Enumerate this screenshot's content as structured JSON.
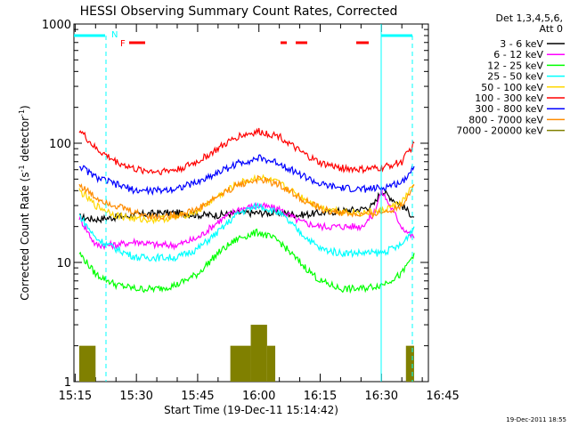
{
  "chart_data": {
    "type": "line",
    "title": "HESSI Observing Summary Count Rates, Corrected",
    "xlabel": "Start Time (19-Dec-11 15:14:42)",
    "ylabel_parts": {
      "main": "Corrected Count Rate (s",
      "sup1": "-1",
      "mid": " detector",
      "sup2": "-1",
      "end": ")"
    },
    "yscale": "log",
    "ylim": [
      1,
      1000
    ],
    "xlim_minutes": [
      14.7,
      101.5
    ],
    "xticks": [
      {
        "label": "15:15",
        "minute": 15
      },
      {
        "label": "15:30",
        "minute": 30
      },
      {
        "label": "15:45",
        "minute": 45
      },
      {
        "label": "16:00",
        "minute": 60
      },
      {
        "label": "16:15",
        "minute": 75
      },
      {
        "label": "16:30",
        "minute": 90
      },
      {
        "label": "16:45",
        "minute": 105
      }
    ],
    "yticks": [
      {
        "label": "1",
        "value": 1
      },
      {
        "label": "10",
        "value": 10
      },
      {
        "label": "100",
        "value": 100
      },
      {
        "label": "1000",
        "value": 1000
      }
    ],
    "legend_title": [
      "Det 1,3,4,5,6,",
      "Att 0"
    ],
    "legend_position": "right",
    "series": [
      {
        "name": "3 - 6 keV",
        "color": "#000000",
        "x": [
          16,
          20,
          25,
          30,
          35,
          40,
          45,
          50,
          55,
          60,
          65,
          70,
          75,
          80,
          85,
          88,
          90,
          95,
          98
        ],
        "y": [
          24,
          23,
          24,
          25,
          26,
          26,
          25,
          25,
          26,
          26,
          26,
          25,
          26,
          27,
          28,
          30,
          40,
          30,
          24
        ]
      },
      {
        "name": "6 - 12 keV",
        "color": "#ff00ff",
        "x": [
          16,
          20,
          25,
          30,
          35,
          40,
          45,
          50,
          55,
          60,
          65,
          70,
          75,
          80,
          85,
          88,
          90,
          95,
          98
        ],
        "y": [
          24,
          14,
          14,
          15,
          14,
          14,
          16,
          22,
          28,
          30,
          28,
          22,
          20,
          20,
          20,
          25,
          40,
          20,
          16
        ]
      },
      {
        "name": "12 - 25 keV",
        "color": "#00ff00",
        "x": [
          16,
          20,
          25,
          30,
          35,
          40,
          45,
          50,
          55,
          60,
          65,
          70,
          75,
          80,
          85,
          90,
          95,
          98
        ],
        "y": [
          12,
          8,
          6.5,
          6,
          6,
          6.5,
          8,
          12,
          16,
          18,
          15,
          10,
          7,
          6,
          6,
          6.5,
          8,
          12
        ]
      },
      {
        "name": "25 - 50 keV",
        "color": "#00ffff",
        "x": [
          16,
          20,
          25,
          30,
          35,
          40,
          45,
          50,
          55,
          60,
          65,
          70,
          75,
          80,
          85,
          90,
          95,
          98
        ],
        "y": [
          25,
          16,
          13,
          11,
          11,
          11,
          13,
          18,
          26,
          30,
          26,
          18,
          13,
          12,
          12,
          12,
          14,
          20
        ]
      },
      {
        "name": "50 - 100 keV",
        "color": "#ffd700",
        "x": [
          16,
          20,
          25,
          30,
          35,
          40,
          45,
          50,
          55,
          60,
          65,
          70,
          75,
          80,
          85,
          90,
          95,
          98
        ],
        "y": [
          40,
          30,
          25,
          23,
          23,
          24,
          27,
          36,
          46,
          52,
          46,
          36,
          29,
          27,
          26,
          27,
          32,
          45
        ]
      },
      {
        "name": "100 - 300 keV",
        "color": "#ff0000",
        "x": [
          16,
          20,
          25,
          30,
          35,
          40,
          45,
          50,
          55,
          60,
          65,
          70,
          75,
          80,
          85,
          90,
          95,
          98
        ],
        "y": [
          130,
          90,
          70,
          60,
          58,
          60,
          70,
          90,
          115,
          125,
          115,
          85,
          68,
          62,
          60,
          62,
          70,
          100
        ]
      },
      {
        "name": "300 - 800 keV",
        "color": "#0000ff",
        "x": [
          16,
          20,
          25,
          30,
          35,
          40,
          45,
          50,
          55,
          60,
          65,
          70,
          75,
          80,
          85,
          90,
          95,
          98
        ],
        "y": [
          65,
          52,
          45,
          40,
          40,
          42,
          47,
          57,
          68,
          75,
          68,
          55,
          45,
          42,
          41,
          42,
          47,
          64
        ]
      },
      {
        "name": "800 - 7000 keV",
        "color": "#ff8c00",
        "x": [
          16,
          20,
          25,
          30,
          35,
          40,
          45,
          50,
          55,
          60,
          65,
          70,
          75,
          80,
          85,
          90,
          95,
          98
        ],
        "y": [
          45,
          35,
          30,
          26,
          24,
          25,
          28,
          36,
          45,
          50,
          45,
          35,
          28,
          26,
          25,
          26,
          30,
          45
        ]
      },
      {
        "name": "7000 - 20000 keV",
        "color": "#808000",
        "bars": [
          [
            16,
            20,
            2
          ],
          [
            53,
            58,
            2
          ],
          [
            58,
            62,
            3
          ],
          [
            62,
            64,
            2
          ],
          [
            96,
            98,
            2
          ]
        ]
      }
    ],
    "flags": [
      {
        "label": "N",
        "color": "#00ffff"
      },
      {
        "label": "F",
        "color": "#ff0000"
      }
    ],
    "timestamp": "19-Dec-2011 18:55"
  }
}
